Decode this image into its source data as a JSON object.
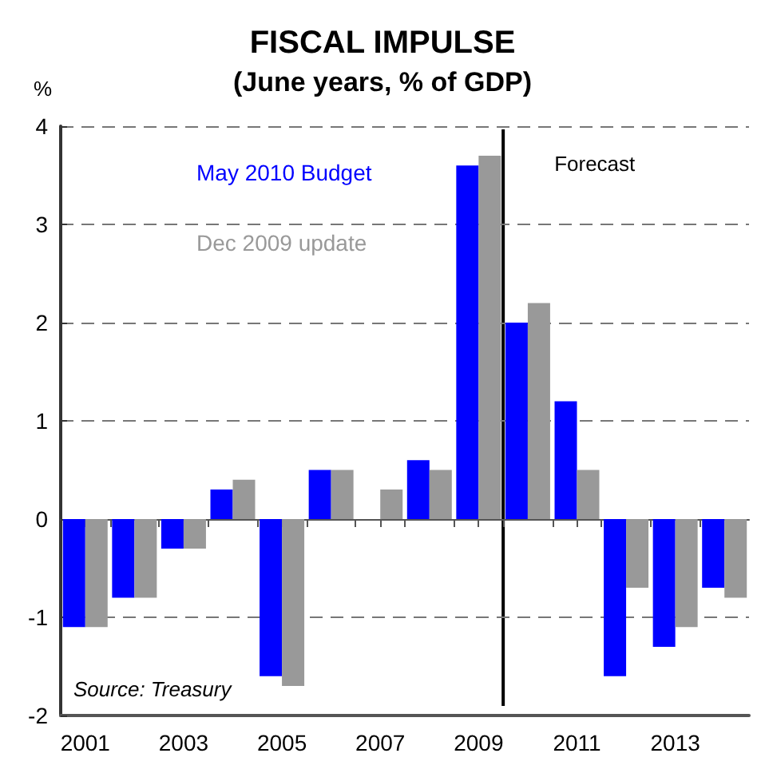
{
  "chart_data": {
    "type": "bar",
    "title": "FISCAL IMPULSE",
    "subtitle": "(June years, % of GDP)",
    "ylabel": "%",
    "x": [
      2001,
      2002,
      2003,
      2004,
      2005,
      2006,
      2007,
      2008,
      2009,
      2010,
      2011,
      2012,
      2013,
      2014
    ],
    "series": [
      {
        "name": "May 2010 Budget",
        "color": "#0000ff",
        "values": [
          -1.1,
          -0.8,
          -0.3,
          0.3,
          -1.6,
          0.5,
          null,
          0.6,
          3.6,
          2.0,
          1.2,
          -1.6,
          -1.3,
          -0.7
        ]
      },
      {
        "name": "Dec 2009 update",
        "color": "#999999",
        "values": [
          -1.1,
          -0.8,
          -0.3,
          0.4,
          -1.7,
          0.5,
          0.3,
          0.5,
          3.7,
          2.2,
          0.5,
          -0.7,
          -1.1,
          -0.8
        ]
      }
    ],
    "xlim": [
      2000.5,
      2014.5
    ],
    "xticks": [
      2001,
      2003,
      2005,
      2007,
      2009,
      2011,
      2013,
      {
        "value": 2001.5,
        "label": null
      },
      {
        "value": 2002.5,
        "label": null
      },
      {
        "value": 2003.5,
        "label": null
      },
      {
        "value": 2004.5,
        "label": null
      },
      {
        "value": 2005.5,
        "label": null
      },
      {
        "value": 2006.5,
        "label": null
      },
      {
        "value": 2007.5,
        "label": null
      },
      {
        "value": 2008.5,
        "label": null
      },
      {
        "value": 2009.5,
        "label": null
      },
      {
        "value": 2010.5,
        "label": null
      },
      {
        "value": 2011.5,
        "label": null
      },
      {
        "value": 2012.5,
        "label": null
      },
      {
        "value": 2013.5,
        "label": null
      }
    ],
    "ylim": [
      -2,
      4
    ],
    "yticks": [
      -2,
      -1,
      0,
      1,
      2,
      3,
      4
    ],
    "grid": "y",
    "legend": "top left",
    "ref_lines": [
      {
        "axis": "x",
        "value": 2009.5,
        "label": "Forecast",
        "color": "#000000"
      }
    ],
    "annotations": [
      "Source: Treasury"
    ]
  }
}
